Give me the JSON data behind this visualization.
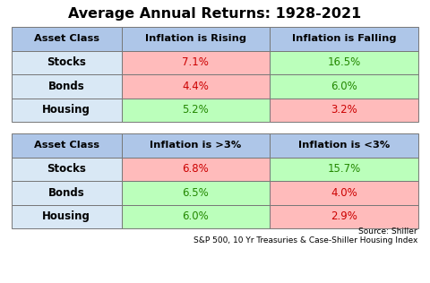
{
  "title": "Average Annual Returns: 1928-2021",
  "source_line1": "Source: Shiller",
  "source_line2": "S&P 500, 10 Yr Treasuries & Case-Shiller Housing Index",
  "table1": {
    "headers": [
      "Asset Class",
      "Inflation is Rising",
      "Inflation is Falling"
    ],
    "rows": [
      [
        "Stocks",
        "7.1%",
        "16.5%"
      ],
      [
        "Bonds",
        "4.4%",
        "6.0%"
      ],
      [
        "Housing",
        "5.2%",
        "3.2%"
      ]
    ],
    "cell_colors": [
      [
        "#d9e8f5",
        "#ffbbbb",
        "#bbffbb"
      ],
      [
        "#d9e8f5",
        "#ffbbbb",
        "#bbffbb"
      ],
      [
        "#d9e8f5",
        "#bbffbb",
        "#ffbbbb"
      ]
    ],
    "value_colors": [
      [
        "#000000",
        "#cc0000",
        "#228800"
      ],
      [
        "#000000",
        "#cc0000",
        "#228800"
      ],
      [
        "#000000",
        "#228800",
        "#cc0000"
      ]
    ]
  },
  "table2": {
    "headers": [
      "Asset Class",
      "Inflation is >3%",
      "Inflation is <3%"
    ],
    "rows": [
      [
        "Stocks",
        "6.8%",
        "15.7%"
      ],
      [
        "Bonds",
        "6.5%",
        "4.0%"
      ],
      [
        "Housing",
        "6.0%",
        "2.9%"
      ]
    ],
    "cell_colors": [
      [
        "#d9e8f5",
        "#ffbbbb",
        "#bbffbb"
      ],
      [
        "#d9e8f5",
        "#bbffbb",
        "#ffbbbb"
      ],
      [
        "#d9e8f5",
        "#bbffbb",
        "#ffbbbb"
      ]
    ],
    "value_colors": [
      [
        "#000000",
        "#cc0000",
        "#228800"
      ],
      [
        "#000000",
        "#228800",
        "#cc0000"
      ],
      [
        "#000000",
        "#228800",
        "#cc0000"
      ]
    ]
  },
  "header_bg": "#aec6e8",
  "red_cell": "#ffbbbb",
  "green_cell": "#bbffbb",
  "asset_cell": "#d9e8f5",
  "red_text": "#cc0000",
  "green_text": "#228800",
  "asset_text": "#000000",
  "header_text": "#000000",
  "border_color": "#777777",
  "title_fontsize": 11.5,
  "header_fontsize": 8.2,
  "cell_fontsize": 8.5,
  "source_fontsize": 6.5
}
